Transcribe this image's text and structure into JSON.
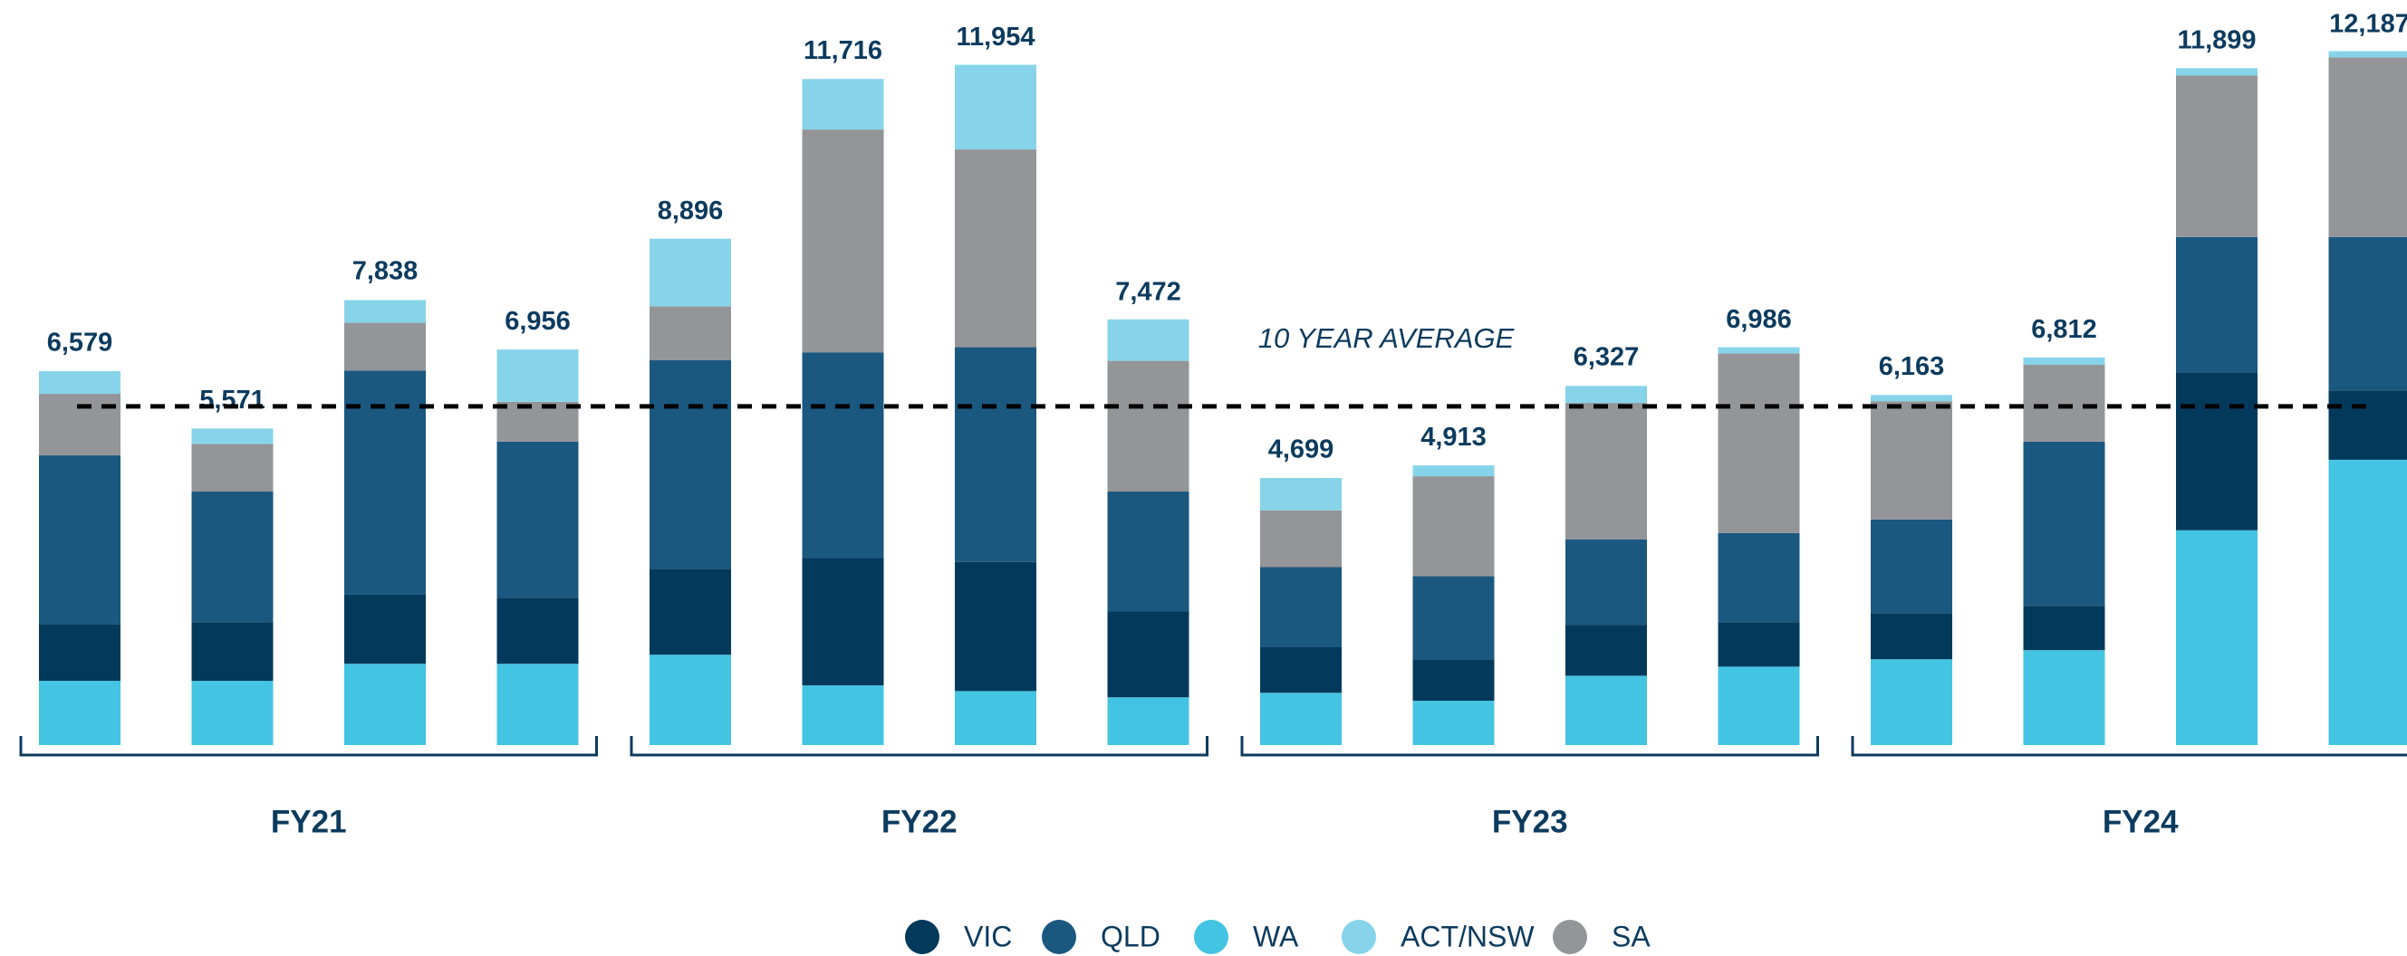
{
  "chart_data": {
    "type": "stacked_bar",
    "categories": [
      null,
      null,
      null,
      null,
      null,
      null,
      null,
      null,
      null,
      null,
      null,
      null,
      null,
      null,
      null,
      null
    ],
    "groups": [
      "FY21",
      "FY22",
      "FY23",
      "FY24"
    ],
    "series": [
      {
        "name": "VIC",
        "color": "#033a5c",
        "values": [
          1000,
          1030,
          1220,
          1160,
          1510,
          2240,
          2270,
          1510,
          810,
          730,
          890,
          780,
          810,
          780,
          2780,
          1220
        ]
      },
      {
        "name": "QLD",
        "color": "#1a5880",
        "values": [
          2970,
          2300,
          3940,
          2750,
          3670,
          3620,
          3780,
          2110,
          1400,
          1460,
          1510,
          1570,
          1650,
          2890,
          2380,
          2700
        ]
      },
      {
        "name": "WA",
        "color": "#44c4e3",
        "values": [
          1130,
          1130,
          1430,
          1430,
          1590,
          1050,
          950,
          840,
          920,
          780,
          1220,
          1380,
          1510,
          1670,
          3780,
          5020
        ]
      },
      {
        "name": "ACT/NSW",
        "color": "#87d4ea",
        "values": [
          400,
          270,
          400,
          920,
          1190,
          890,
          1490,
          730,
          570,
          190,
          300,
          110,
          110,
          130,
          130,
          110
        ]
      },
      {
        "name": "SA",
        "color": "#939598",
        "values": [
          1080,
          840,
          840,
          700,
          950,
          3920,
          3480,
          2300,
          1000,
          1760,
          2400,
          3160,
          2080,
          1350,
          2840,
          3160
        ]
      }
    ],
    "totals": [
      6579,
      5571,
      7838,
      6956,
      8896,
      11716,
      11954,
      7472,
      4699,
      4913,
      6327,
      6986,
      6163,
      6812,
      11899,
      12187
    ],
    "total_labels": [
      "6,579",
      "5,571",
      "7,838",
      "6,956",
      "8,896",
      "11,716",
      "11,954",
      "7,472",
      "4,699",
      "4,913",
      "6,327",
      "6,986",
      "6,163",
      "6,812",
      "11,899",
      "12,187"
    ],
    "average": 5960,
    "average_label": "10 YEAR AVERAGE",
    "ylim": [
      0,
      12600
    ]
  }
}
